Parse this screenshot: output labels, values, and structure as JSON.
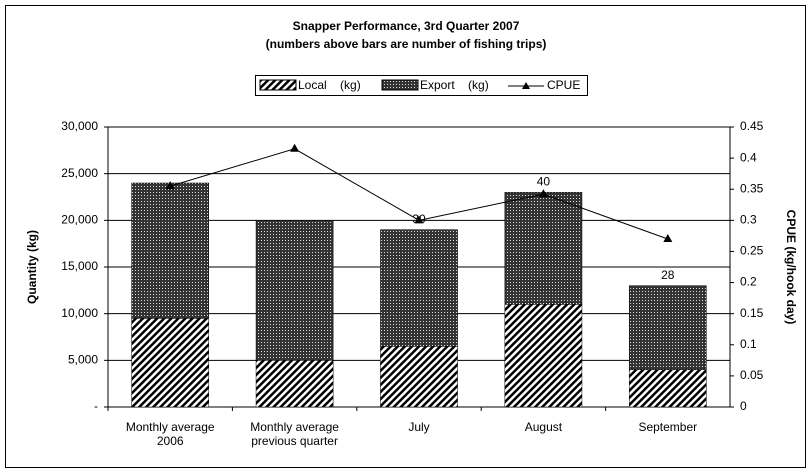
{
  "chart_data": {
    "type": "bar",
    "title": "Snapper Performance, 3rd Quarter 2007",
    "subtitle": "(numbers above bars are number of fishing trips)",
    "y_label": "Quantity (kg)",
    "y2_label": "CPUE (kg/hook day)",
    "stacked": true,
    "categories": [
      "Monthly average\n2006",
      "Monthly average\nprevious quarter",
      "July",
      "August",
      "September"
    ],
    "series": [
      {
        "name": "Local    (kg)",
        "pattern": "diagonal",
        "values": [
          9500,
          5000,
          6500,
          11000,
          4000
        ]
      },
      {
        "name": "Export    (kg)",
        "pattern": "dots",
        "values": [
          14500,
          15000,
          12500,
          12000,
          9000
        ]
      },
      {
        "name": "CPUE",
        "type": "line",
        "axis": "y2",
        "color": "#000000",
        "values": [
          0.355,
          0.415,
          0.3,
          0.342,
          0.27
        ]
      }
    ],
    "trip_labels": [
      null,
      null,
      30,
      40,
      28
    ],
    "ylim": [
      0,
      30000
    ],
    "yticks": [
      {
        "value": 0,
        "label": "-"
      },
      {
        "value": 5000,
        "label": "5,000"
      },
      {
        "value": 10000,
        "label": "10,000"
      },
      {
        "value": 15000,
        "label": "15,000"
      },
      {
        "value": 20000,
        "label": "20,000"
      },
      {
        "value": 25000,
        "label": "25,000"
      },
      {
        "value": 30000,
        "label": "30,000"
      }
    ],
    "y2lim": [
      0,
      0.45
    ],
    "y2ticks": [
      0,
      0.05,
      0.1,
      0.15,
      0.2,
      0.25,
      0.3,
      0.35,
      0.4,
      0.45
    ],
    "grid": true,
    "legend": "top"
  }
}
